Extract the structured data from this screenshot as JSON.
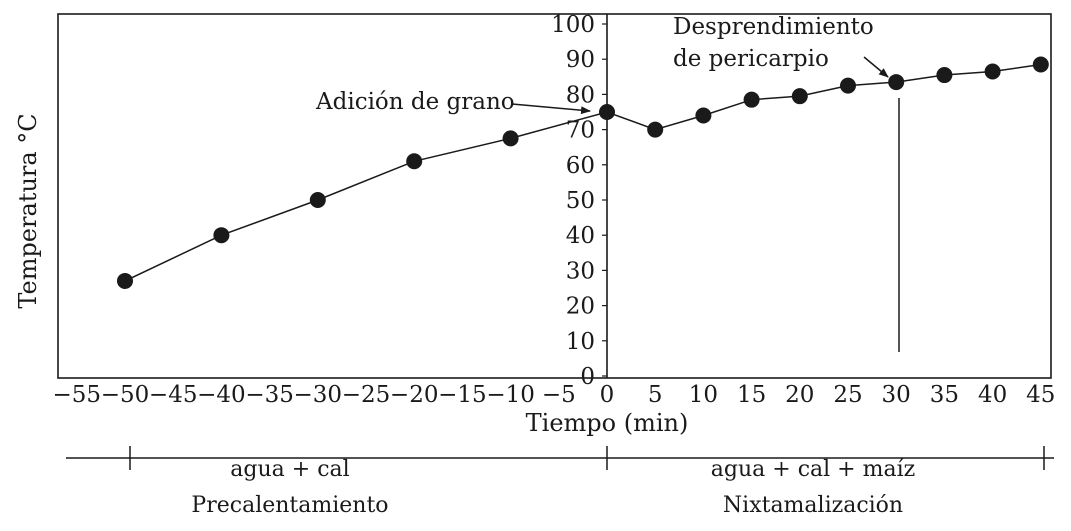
{
  "chart_data": {
    "type": "line",
    "xlabel": "Tiempo (min)",
    "ylabel": "Temperatura °C",
    "xlim": [
      -57,
      47
    ],
    "ylim": [
      0,
      100
    ],
    "x_ticks": [
      -55,
      -50,
      -45,
      -40,
      -35,
      -30,
      -25,
      -20,
      -15,
      -10,
      -5,
      0,
      5,
      10,
      15,
      20,
      25,
      30,
      35,
      40,
      45
    ],
    "x_tick_labels": [
      "−55",
      "−50",
      "−45",
      "−40",
      "−35",
      "−30",
      "−25",
      "−20",
      "−15",
      "−10",
      "−5",
      "0",
      "5",
      "10",
      "15",
      "20",
      "25",
      "30",
      "35",
      "40",
      "45"
    ],
    "y_ticks": [
      0,
      10,
      20,
      30,
      40,
      50,
      60,
      70,
      80,
      90,
      100
    ],
    "y_tick_labels": [
      "0",
      "10",
      "20",
      "30",
      "40",
      "50",
      "60",
      "70",
      "80",
      "90",
      "100"
    ],
    "grid": false,
    "legend": "none",
    "series": [
      {
        "x": [
          -50,
          -40,
          -30,
          -20,
          -10,
          0,
          5,
          10,
          15,
          20,
          25,
          30,
          35,
          40,
          45
        ],
        "y": [
          27,
          40,
          50,
          61,
          67.5,
          75,
          70,
          74,
          78.5,
          79.5,
          82.5,
          83.5,
          85.5,
          86.5,
          88.5
        ]
      }
    ],
    "annotations": [
      {
        "text": "Adición de grano",
        "x": 0,
        "y": 75
      },
      {
        "text_lines": [
          "Desprendimiento",
          "de pericarpio"
        ],
        "x": 30,
        "y": 83.5
      }
    ],
    "phases": [
      {
        "from": -50,
        "to": 0,
        "lines": [
          "agua + cal",
          "Precalentamiento"
        ]
      },
      {
        "from": 0,
        "to": 45,
        "lines": [
          "agua + cal + maíz",
          "Nixtamalización"
        ]
      }
    ]
  },
  "colors": {
    "ink": "#1a1a1a",
    "background": "#ffffff"
  }
}
